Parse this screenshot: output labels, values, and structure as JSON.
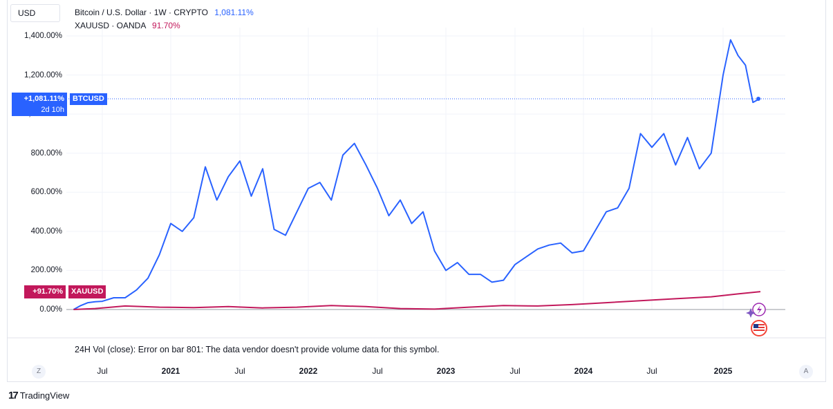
{
  "currency": "USD",
  "legend": [
    {
      "label": "Bitcoin / U.S. Dollar · 1W · CRYPTO",
      "value": "1,081.11%",
      "color": "#2962ff"
    },
    {
      "label": "XAUUSD · OANDA",
      "value": "91.70%",
      "color": "#c2185b"
    }
  ],
  "tags": {
    "btc_value": "+1,081.11%",
    "btc_timer": "2d 10h",
    "btc_symbol": "BTCUSD",
    "xau_value": "+91.70%",
    "xau_symbol": "XAUUSD"
  },
  "volume_message": "24H Vol (close): Error on bar 801: The data vendor doesn't provide volume data for this symbol.",
  "nav": {
    "left": "Z",
    "right": "A"
  },
  "brand": "TradingView",
  "chart_data": {
    "type": "line",
    "x_ticks": [
      "Jul",
      "2021",
      "Jul",
      "2022",
      "Jul",
      "2023",
      "Jul",
      "2024",
      "Jul",
      "2025"
    ],
    "y_ticks": [
      "1,400.00%",
      "1,200.00%",
      "1,000.00%",
      "800.00%",
      "600.00%",
      "400.00%",
      "200.00%",
      "0.00%"
    ],
    "ylim": [
      0,
      1400
    ],
    "series": [
      {
        "name": "BTCUSD",
        "color": "#2962ff",
        "points": [
          [
            "2020-03",
            0
          ],
          [
            "2020-04",
            20
          ],
          [
            "2020-05",
            35
          ],
          [
            "2020-06",
            40
          ],
          [
            "2020-07",
            42
          ],
          [
            "2020-08",
            60
          ],
          [
            "2020-09",
            60
          ],
          [
            "2020-10",
            100
          ],
          [
            "2020-11",
            160
          ],
          [
            "2020-12",
            280
          ],
          [
            "2021-01",
            440
          ],
          [
            "2021-02",
            400
          ],
          [
            "2021-03",
            470
          ],
          [
            "2021-04",
            730
          ],
          [
            "2021-05",
            560
          ],
          [
            "2021-06",
            680
          ],
          [
            "2021-07",
            760
          ],
          [
            "2021-08",
            580
          ],
          [
            "2021-09",
            720
          ],
          [
            "2021-10",
            410
          ],
          [
            "2021-11",
            380
          ],
          [
            "2021-12",
            500
          ],
          [
            "2022-01",
            620
          ],
          [
            "2022-02",
            650
          ],
          [
            "2022-03",
            560
          ],
          [
            "2022-04",
            790
          ],
          [
            "2022-05",
            850
          ],
          [
            "2022-06",
            740
          ],
          [
            "2022-07",
            620
          ],
          [
            "2022-08",
            480
          ],
          [
            "2022-09",
            560
          ],
          [
            "2022-10",
            440
          ],
          [
            "2022-11",
            500
          ],
          [
            "2022-12",
            300
          ],
          [
            "2023-01",
            200
          ],
          [
            "2023-02",
            240
          ],
          [
            "2023-03",
            180
          ],
          [
            "2023-04",
            180
          ],
          [
            "2023-05",
            140
          ],
          [
            "2023-06",
            150
          ],
          [
            "2023-07",
            230
          ],
          [
            "2023-08",
            270
          ],
          [
            "2023-09",
            310
          ],
          [
            "2023-10",
            330
          ],
          [
            "2023-11",
            340
          ],
          [
            "2023-12",
            290
          ],
          [
            "2024-01",
            300
          ],
          [
            "2024-02",
            400
          ],
          [
            "2024-03",
            500
          ],
          [
            "2024-04",
            520
          ],
          [
            "2024-05",
            620
          ],
          [
            "2024-06",
            900
          ],
          [
            "2024-07",
            830
          ],
          [
            "2024-08",
            900
          ],
          [
            "2024-09",
            740
          ],
          [
            "2024-10",
            880
          ],
          [
            "2024-11",
            720
          ],
          [
            "2024-12",
            800
          ],
          [
            "2025-01",
            1200
          ],
          [
            "2025-02",
            1380
          ],
          [
            "2025-03",
            1300
          ],
          [
            "2025-04",
            1250
          ],
          [
            "2025-05",
            1060
          ],
          [
            "2025-06",
            1081.11
          ]
        ]
      },
      {
        "name": "XAUUSD",
        "color": "#c2185b",
        "points": [
          [
            "2020-03",
            0
          ],
          [
            "2020-06",
            5
          ],
          [
            "2020-09",
            18
          ],
          [
            "2020-12",
            12
          ],
          [
            "2021-03",
            10
          ],
          [
            "2021-06",
            15
          ],
          [
            "2021-09",
            8
          ],
          [
            "2021-12",
            12
          ],
          [
            "2022-03",
            20
          ],
          [
            "2022-06",
            15
          ],
          [
            "2022-09",
            5
          ],
          [
            "2022-12",
            2
          ],
          [
            "2023-03",
            12
          ],
          [
            "2023-06",
            20
          ],
          [
            "2023-09",
            18
          ],
          [
            "2023-12",
            25
          ],
          [
            "2024-03",
            35
          ],
          [
            "2024-06",
            45
          ],
          [
            "2024-09",
            55
          ],
          [
            "2024-12",
            65
          ],
          [
            "2025-03",
            80
          ],
          [
            "2025-06",
            91.7
          ]
        ]
      }
    ]
  }
}
